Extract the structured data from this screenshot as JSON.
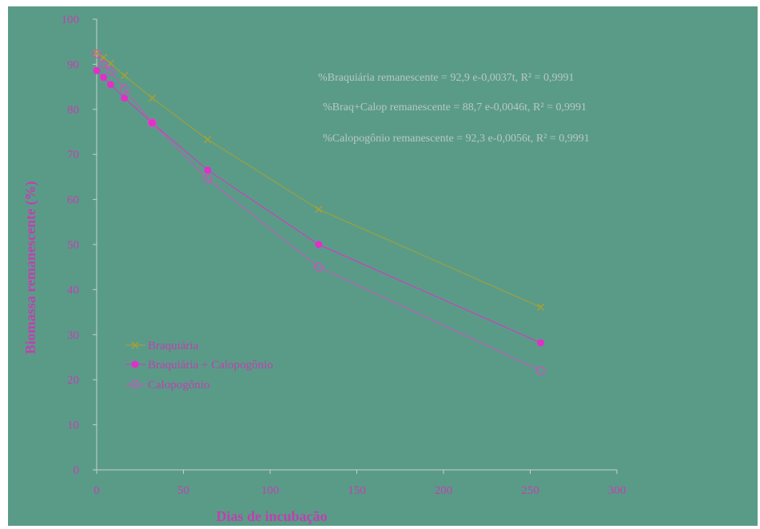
{
  "chart_data": {
    "type": "line",
    "xlabel": "Dias de incubação",
    "ylabel": "Biomassa remanescente (%)",
    "xlim": [
      0,
      300
    ],
    "ylim": [
      0,
      100
    ],
    "xticks": [
      0,
      50,
      100,
      150,
      200,
      250,
      300
    ],
    "yticks": [
      0,
      10,
      20,
      30,
      40,
      50,
      60,
      70,
      80,
      90,
      100
    ],
    "grid": false,
    "legend_position": "bottom-left",
    "annotations": [
      "%Braquiária remanescente = 92,9 e-0,0037t, R² = 0,9991",
      "%Braq+Calop remanescente = 88,7 e-0,0046t, R² = 0,9991",
      "%Calopogônio remanescente = 92,3 e-0,0056t, R² = 0,9991"
    ],
    "series": [
      {
        "name": "Braquiária",
        "marker": "x",
        "color": "#a8a030",
        "points": [
          [
            0,
            92.5
          ],
          [
            4,
            91.5
          ],
          [
            8,
            90.2
          ],
          [
            16,
            87.5
          ],
          [
            32,
            82.5
          ],
          [
            64,
            73.3
          ],
          [
            128,
            57.8
          ],
          [
            256,
            36.1
          ]
        ]
      },
      {
        "name": "Braquiária + Calopogônio",
        "marker": "filled-circle",
        "color": "#e030c8",
        "points": [
          [
            0,
            88.6
          ],
          [
            4,
            87.1
          ],
          [
            8,
            85.5
          ],
          [
            16,
            82.5
          ],
          [
            32,
            77.0
          ],
          [
            64,
            66.5
          ],
          [
            128,
            50.0
          ],
          [
            256,
            28.2
          ]
        ]
      },
      {
        "name": "Calopogônio",
        "marker": "open-circle",
        "color": "#d050c0",
        "points": [
          [
            0,
            92.3
          ],
          [
            4,
            90.0
          ],
          [
            8,
            88.5
          ],
          [
            16,
            84.5
          ],
          [
            32,
            77.0
          ],
          [
            64,
            64.5
          ],
          [
            128,
            45.0
          ],
          [
            256,
            22.0
          ]
        ]
      }
    ]
  }
}
